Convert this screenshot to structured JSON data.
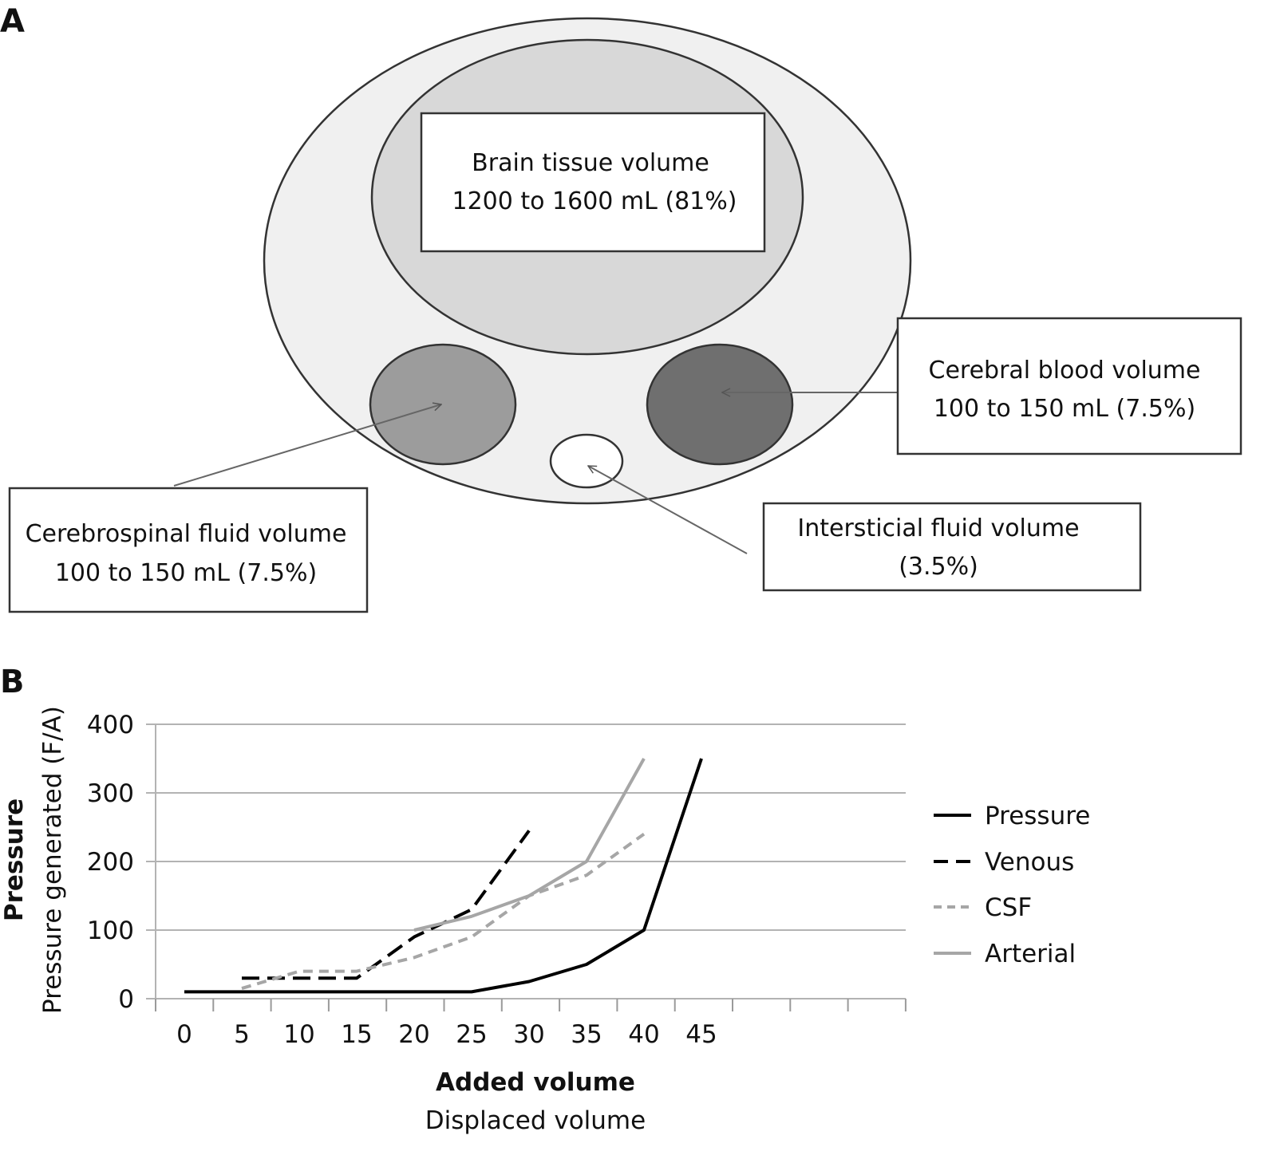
{
  "panel_a": {
    "letter": "A",
    "brain_tissue": {
      "line1": "Brain tissue volume",
      "line2": "1200 to 1600 mL (81%)",
      "color": "#d8d8d8"
    },
    "cerebral_blood": {
      "line1": "Cerebral blood volume",
      "line2": "100 to 150 mL (7.5%)",
      "color": "#6f6f6f"
    },
    "csf": {
      "line1": "Cerebrospinal fluid volume",
      "line2": "100 to 150 mL (7.5%)",
      "color": "#9c9c9c"
    },
    "interstitial": {
      "line1": "Intersticial fluid volume",
      "line2": "(3.5%)",
      "color": "#ffffff"
    },
    "skull_color": "#f0f0f0"
  },
  "panel_b": {
    "letter": "B"
  },
  "chart_data": {
    "type": "line",
    "x_ticks": [
      "0",
      "5",
      "10",
      "15",
      "20",
      "25",
      "30",
      "35",
      "40",
      "45"
    ],
    "y_ticks": [
      "0",
      "100",
      "200",
      "300",
      "400"
    ],
    "ylim": [
      0,
      400
    ],
    "xlabel": "Added volume",
    "xlabel_sub": "Displaced volume",
    "ylabel": "Pressure",
    "ylabel_sub": "Pressure generated (F/A)",
    "grid": true,
    "legend_position": "right",
    "series": [
      {
        "name": "Pressure",
        "style": "solid",
        "color": "#000000",
        "width": 4,
        "x": [
          0,
          5,
          10,
          15,
          20,
          25,
          30,
          35,
          40,
          45
        ],
        "y": [
          10,
          10,
          10,
          10,
          10,
          10,
          25,
          50,
          100,
          350
        ]
      },
      {
        "name": "Venous",
        "style": "dashed",
        "color": "#000000",
        "width": 4,
        "x": [
          5,
          10,
          15,
          20,
          25,
          30
        ],
        "y": [
          30,
          30,
          30,
          90,
          130,
          245
        ]
      },
      {
        "name": "CSF",
        "style": "dashed",
        "color": "#a6a6a6",
        "width": 4,
        "x": [
          5,
          10,
          15,
          20,
          25,
          30,
          35,
          40
        ],
        "y": [
          15,
          40,
          40,
          60,
          90,
          150,
          180,
          240
        ]
      },
      {
        "name": "Arterial",
        "style": "solid",
        "color": "#a6a6a6",
        "width": 4,
        "x": [
          20,
          25,
          30,
          35,
          40
        ],
        "y": [
          100,
          120,
          150,
          200,
          350
        ]
      }
    ]
  }
}
